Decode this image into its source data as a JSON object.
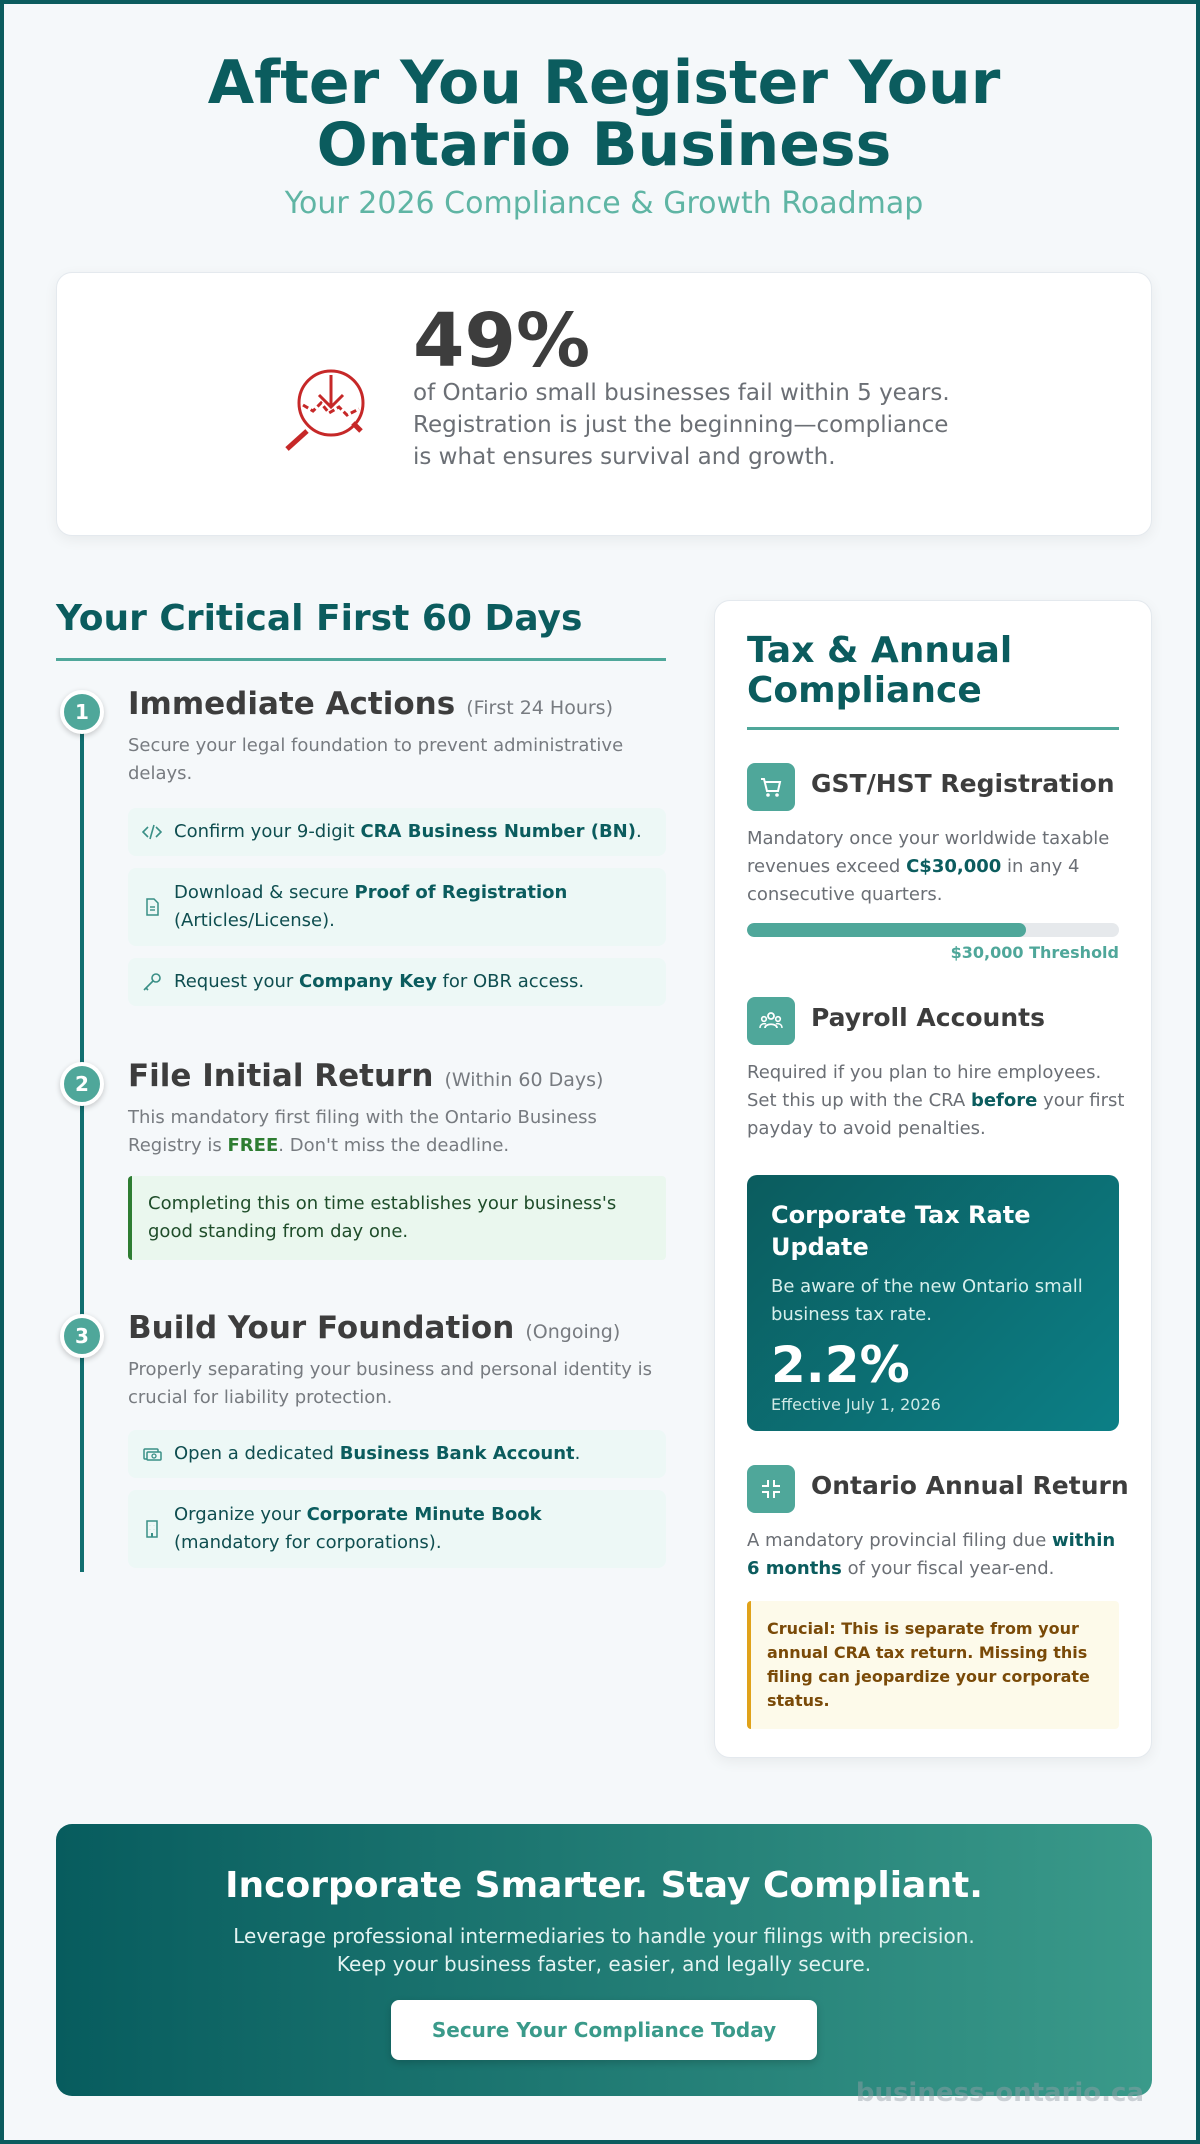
{
  "header": {
    "title": "After You Register Your Ontario Business",
    "subtitle": "Your 2026 Compliance & Growth Roadmap"
  },
  "stat": {
    "value": "49%",
    "text": "of Ontario small businesses fail within 5 years. Registration is just the beginning—compliance is what ensures survival and growth.",
    "icon": "declining-chart-icon"
  },
  "timeline": {
    "title": "Your Critical First 60 Days",
    "steps": [
      {
        "number": "1",
        "title": "Immediate Actions",
        "tag": "(First 24 Hours)",
        "desc": "Secure your legal foundation to prevent administrative delays.",
        "actions": [
          {
            "icon": "code-icon",
            "pre": "Confirm your 9-digit ",
            "bold": "CRA Business Number (BN)",
            "post": "."
          },
          {
            "icon": "document-icon",
            "pre": "Download & secure ",
            "bold": "Proof of Registration",
            "post": " (Articles/License)."
          },
          {
            "icon": "key-icon",
            "pre": "Request your ",
            "bold": "Company Key",
            "post": " for OBR access."
          }
        ]
      },
      {
        "number": "2",
        "title": "File Initial Return",
        "tag": "(Within 60 Days)",
        "desc_pre": "This mandatory first filing with the Ontario Business Registry is ",
        "desc_bold": "FREE",
        "desc_post": ". Don't miss the deadline.",
        "note": "Completing this on time establishes your business's good standing from day one."
      },
      {
        "number": "3",
        "title": "Build Your Foundation",
        "tag": "(Ongoing)",
        "desc": "Properly separating your business and personal identity is crucial for liability protection.",
        "actions": [
          {
            "icon": "money-icon",
            "pre": "Open a dedicated ",
            "bold": "Business Bank Account",
            "post": "."
          },
          {
            "icon": "building-icon",
            "pre": "Organize your ",
            "bold": "Corporate Minute Book",
            "post": " (mandatory for corporations)."
          }
        ]
      }
    ]
  },
  "compliance": {
    "title": "Tax & Annual Compliance",
    "gst": {
      "icon": "cart-icon",
      "title": "GST/HST Registration",
      "desc_pre": "Mandatory once your worldwide taxable revenues exceed ",
      "desc_bold": "C$30,000",
      "desc_post": " in any 4 consecutive quarters.",
      "progress": 0.75,
      "progress_label": "$30,000 Threshold"
    },
    "payroll": {
      "icon": "people-icon",
      "title": "Payroll Accounts",
      "desc_pre": "Required if you plan to hire employees. Set this up with the CRA ",
      "desc_bold": "before",
      "desc_post": " your first payday to avoid penalties."
    },
    "tax_rate": {
      "title": "Corporate Tax Rate Update",
      "desc": "Be aware of the new Ontario small business tax rate.",
      "rate": "2.2%",
      "effective": "Effective July 1, 2026"
    },
    "annual": {
      "icon": "compress-icon",
      "title": "Ontario Annual Return",
      "desc_pre": "A mandatory provincial filing due ",
      "desc_bold": "within 6 months",
      "desc_post": " of your fiscal year-end.",
      "warning": "Crucial: This is separate from your annual CRA tax return. Missing this filing can jeopardize your corporate status."
    }
  },
  "cta": {
    "title": "Incorporate Smarter. Stay Compliant.",
    "line1": "Leverage professional intermediaries to handle your filings with precision.",
    "line2": "Keep your business faster, easier, and legally secure.",
    "button": "Secure Your Compliance Today"
  },
  "watermark": "business-ontario.ca",
  "colors": {
    "primary": "#0b5c5e",
    "accent": "#4fa79a",
    "danger": "#c62828",
    "success": "#2e7d32",
    "warning": "#e0a21a"
  }
}
